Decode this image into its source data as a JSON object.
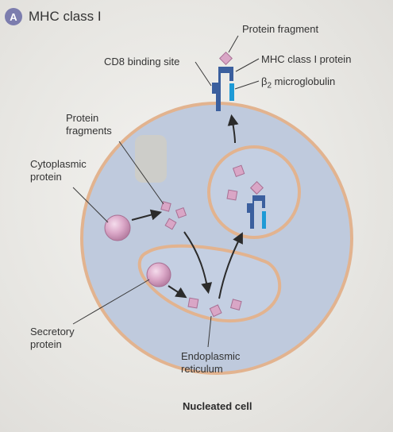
{
  "header": {
    "badge": "A",
    "title": "MHC class I"
  },
  "labels": {
    "protein_fragment": "Protein fragment",
    "cd8_binding_site": "CD8 binding site",
    "mhc_class_i_protein": "MHC class I protein",
    "b2_microglobulin_beta": "β",
    "b2_microglobulin_sub": "2",
    "b2_microglobulin_rest": " microglobulin",
    "protein_fragments_1": "Protein",
    "protein_fragments_2": "fragments",
    "cytoplasmic_protein_1": "Cytoplasmic",
    "cytoplasmic_protein_2": "protein",
    "secretory_protein_1": "Secretory",
    "secretory_protein_2": "protein",
    "er_1": "Endoplasmic",
    "er_2": "reticulum",
    "nucleated_cell": "Nucleated cell"
  },
  "colors": {
    "cell_fill": "#bfcadd",
    "cell_border": "#e2b38f",
    "vesicle_fill": "#c4cfe2",
    "protein_fill": "#d9a6c6",
    "mhc_blue": "#3b5f9e",
    "b2m_cyan": "#1e9ad6",
    "arrow": "#2b2b2b"
  }
}
